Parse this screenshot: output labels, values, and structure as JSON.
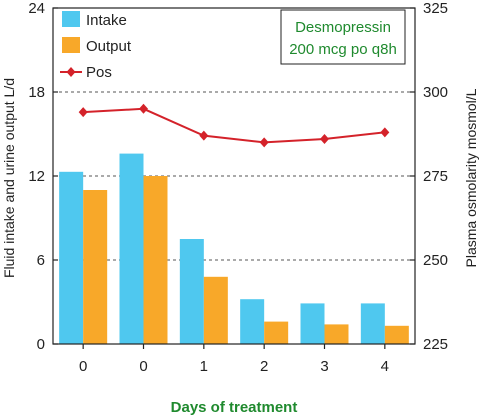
{
  "chart_data": {
    "type": "bar",
    "categories": [
      "0",
      "0",
      "1",
      "2",
      "3",
      "4"
    ],
    "xlabel": "Days of treatment",
    "ylabel": "Fluid intake and urine output L/d",
    "y2label": "Plasma osmolarity mosmol/L",
    "ylim": [
      0,
      24
    ],
    "y2lim": [
      225,
      325
    ],
    "yticks": [
      0,
      6,
      12,
      18,
      24
    ],
    "y2ticks": [
      225,
      250,
      275,
      300,
      325
    ],
    "grid": "dashed horizontal at major ticks",
    "legend_position": "top-left",
    "series": [
      {
        "name": "Intake",
        "type": "bar",
        "axis": "left",
        "color": "#4fc8ef",
        "values": [
          12.3,
          13.6,
          7.5,
          3.2,
          2.9,
          2.9
        ]
      },
      {
        "name": "Output",
        "type": "bar",
        "axis": "left",
        "color": "#f8a829",
        "values": [
          11.0,
          12.0,
          4.8,
          1.6,
          1.4,
          1.3
        ]
      },
      {
        "name": "Pos",
        "type": "line",
        "axis": "right",
        "color": "#d4222a",
        "marker": "diamond",
        "values": [
          294,
          295,
          287,
          285,
          286,
          288
        ]
      }
    ],
    "annotation": {
      "lines": [
        "Desmopressin",
        "200 mcg po q8h"
      ],
      "color": "#1f8a2e"
    }
  }
}
